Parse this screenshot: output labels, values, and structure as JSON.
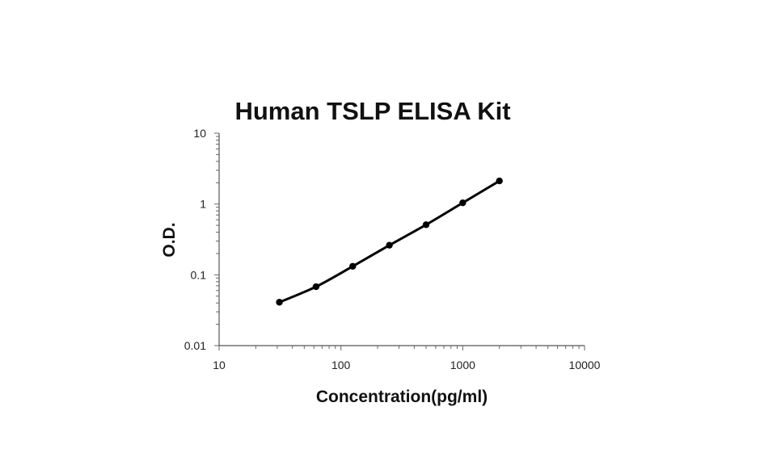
{
  "chart_data": {
    "type": "line",
    "title": "Human TSLP ELISA Kit",
    "xlabel": "Concentration(pg/ml)",
    "ylabel": "O.D.",
    "x_scale": "log",
    "y_scale": "log",
    "xlim": [
      10,
      10000
    ],
    "ylim": [
      0.01,
      10
    ],
    "x_ticks": [
      "10",
      "100",
      "1000",
      "10000"
    ],
    "y_ticks": [
      "0.01",
      "0.1",
      "1",
      "10"
    ],
    "grid": false,
    "legend": "none",
    "series": [
      {
        "x": [
          31.25,
          62.5,
          125,
          250,
          500,
          1000,
          2000
        ],
        "y": [
          0.041,
          0.068,
          0.132,
          0.262,
          0.51,
          1.04,
          2.12
        ],
        "color": "#000000"
      }
    ]
  }
}
